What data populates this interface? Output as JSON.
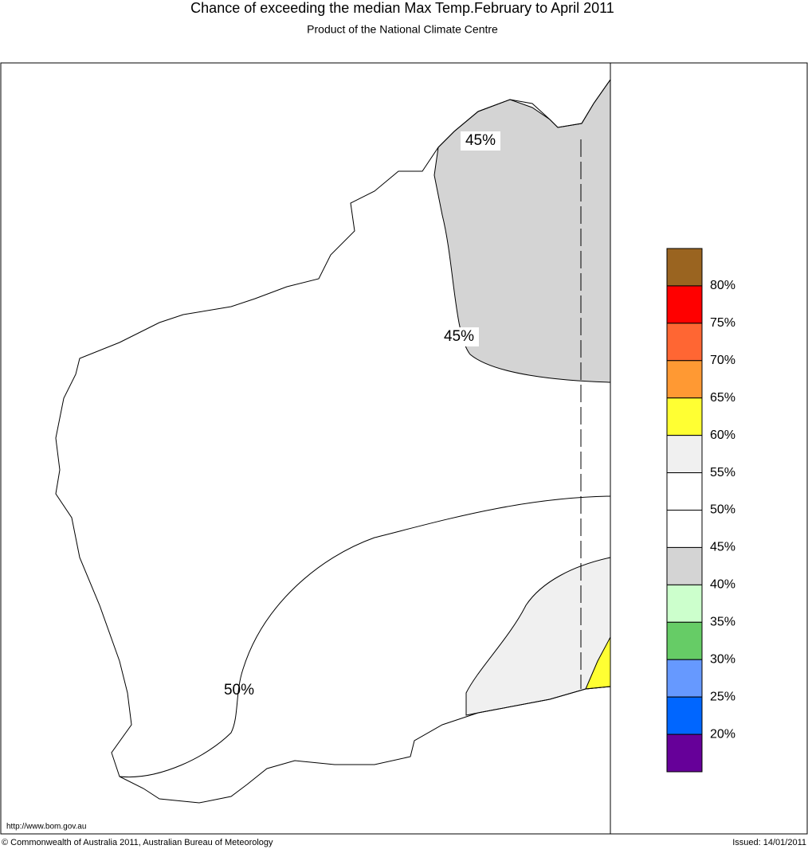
{
  "header": {
    "title": "Chance of exceeding the median Max Temp.February to April 2011",
    "subtitle": "Product of the National Climate Centre"
  },
  "map": {
    "contour_labels": [
      "45%",
      "45%",
      "50%"
    ]
  },
  "legend": {
    "colors": [
      "#9a6420",
      "#ff0000",
      "#ff6633",
      "#ff9933",
      "#ffff33",
      "#f0f0f0",
      "#ffffff",
      "#ffffff",
      "#d4d4d4",
      "#ccffcc",
      "#66cc66",
      "#6699ff",
      "#0066ff",
      "#660099"
    ],
    "labels": [
      "80%",
      "75%",
      "70%",
      "65%",
      "60%",
      "55%",
      "50%",
      "45%",
      "40%",
      "35%",
      "30%",
      "25%",
      "20%"
    ]
  },
  "footer": {
    "url": "http://www.bom.gov.au",
    "copyright": "© Commonwealth of Australia 2011, Australian Bureau of Meteorology",
    "issued": "Issued: 14/01/2011"
  }
}
